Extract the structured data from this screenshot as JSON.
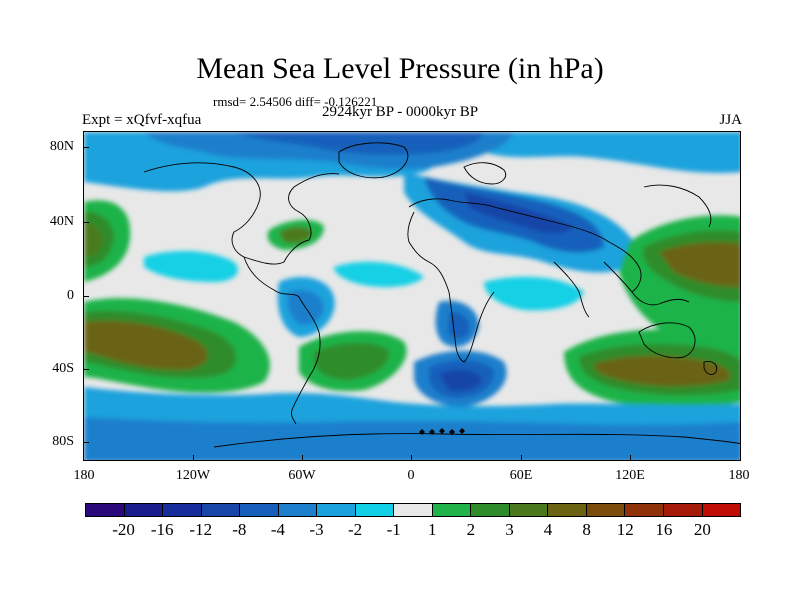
{
  "title": "Mean Sea Level Pressure (in hPa)",
  "stats": "rmsd= 2.54506  diff= -0.126221",
  "period": "2924kyr BP - 0000kyr BP",
  "experiment": "Expt = xQfvf-xqfua",
  "season": "JJA",
  "lat_labels": [
    "80N",
    "40N",
    "0",
    "40S",
    "80S"
  ],
  "lon_labels": [
    "180",
    "120W",
    "60W",
    "0",
    "60E",
    "120E",
    "180"
  ],
  "colorbar": {
    "colors": [
      "#2a0a7a",
      "#1a1d8c",
      "#182d9c",
      "#1745a8",
      "#1660bb",
      "#1e7fcc",
      "#1aa2dd",
      "#12d0e6",
      "#e8e8e8",
      "#1fb34a",
      "#2f8c2a",
      "#4b7a1e",
      "#6b6312",
      "#7c4c0c",
      "#8f320a",
      "#a51a08",
      "#c00d05"
    ],
    "labels": [
      "-20",
      "-16",
      "-12",
      "-8",
      "-4",
      "-3",
      "-2",
      "-1",
      "1",
      "2",
      "3",
      "4",
      "8",
      "12",
      "16",
      "20"
    ]
  }
}
